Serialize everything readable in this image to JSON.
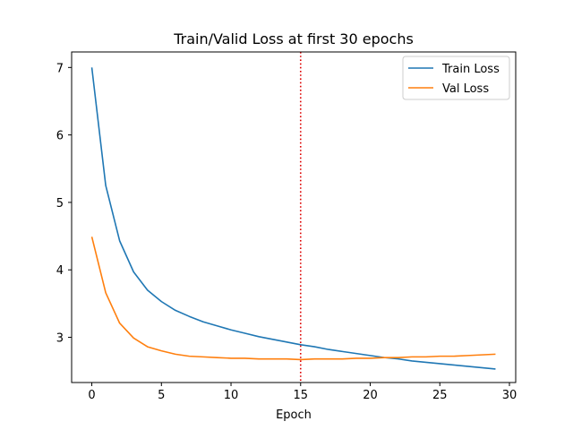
{
  "chart_data": {
    "type": "line",
    "title": "Train/Valid Loss at first 30 epochs",
    "xlabel": "Epoch",
    "ylabel": "",
    "xlim": [
      -1.45,
      30.45
    ],
    "ylim": [
      2.33,
      7.23
    ],
    "xticks": [
      0,
      5,
      10,
      15,
      20,
      25,
      30
    ],
    "yticks": [
      3,
      4,
      5,
      6,
      7
    ],
    "grid": false,
    "legend_position": "top-right",
    "vline": {
      "x": 15,
      "color": "#dd0000",
      "style": "dotted"
    },
    "x": [
      0,
      1,
      2,
      3,
      4,
      5,
      6,
      7,
      8,
      9,
      10,
      11,
      12,
      13,
      14,
      15,
      16,
      17,
      18,
      19,
      20,
      21,
      22,
      23,
      24,
      25,
      26,
      27,
      28,
      29
    ],
    "series": [
      {
        "name": "Train Loss",
        "color": "#1f77b4",
        "values": [
          7.0,
          5.25,
          4.43,
          3.97,
          3.7,
          3.53,
          3.4,
          3.31,
          3.23,
          3.17,
          3.11,
          3.06,
          3.01,
          2.97,
          2.93,
          2.89,
          2.86,
          2.82,
          2.79,
          2.76,
          2.73,
          2.7,
          2.68,
          2.65,
          2.63,
          2.61,
          2.59,
          2.57,
          2.55,
          2.53
        ]
      },
      {
        "name": "Val Loss",
        "color": "#ff7f0e",
        "values": [
          4.49,
          3.66,
          3.21,
          2.99,
          2.86,
          2.8,
          2.75,
          2.72,
          2.71,
          2.7,
          2.69,
          2.69,
          2.68,
          2.68,
          2.68,
          2.67,
          2.68,
          2.68,
          2.68,
          2.69,
          2.69,
          2.7,
          2.7,
          2.71,
          2.71,
          2.72,
          2.72,
          2.73,
          2.74,
          2.75
        ]
      }
    ]
  }
}
